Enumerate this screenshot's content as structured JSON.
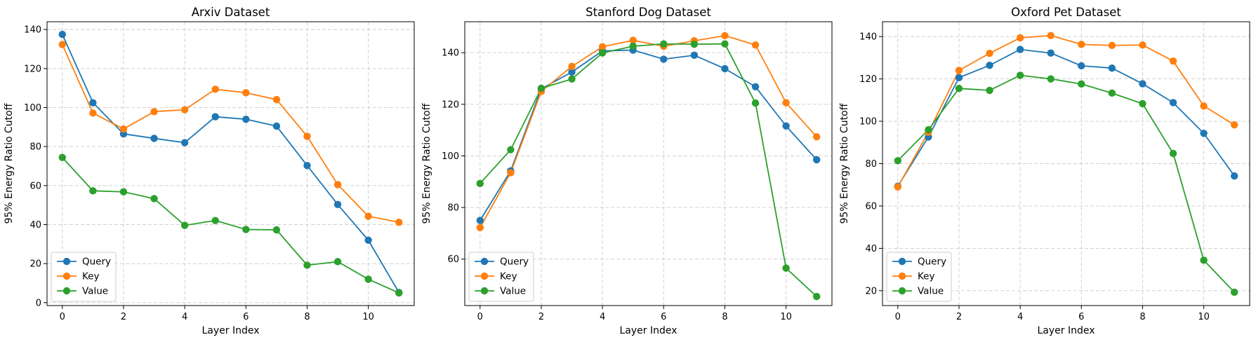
{
  "colors": {
    "query": "#1f77b4",
    "key": "#ff7f0e",
    "value": "#2ca02c",
    "grid": "#cccccc"
  },
  "chart_data": [
    {
      "type": "line",
      "title": "Arxiv Dataset",
      "xlabel": "Layer Index",
      "ylabel": "95% Energy Ratio Cutoff",
      "x": [
        0,
        1,
        2,
        3,
        4,
        5,
        6,
        7,
        8,
        9,
        10,
        11
      ],
      "xlim": [
        -0.5,
        11.5
      ],
      "ylim": [
        -1.5,
        144
      ],
      "xticks": [
        0,
        2,
        4,
        6,
        8,
        10
      ],
      "yticks": [
        0,
        20,
        40,
        60,
        80,
        100,
        120,
        140
      ],
      "grid": true,
      "legend": "lower-left",
      "series": [
        {
          "name": "Query",
          "values": [
            137.5,
            102.5,
            86.5,
            84.2,
            82,
            95.3,
            94,
            90.5,
            70.3,
            50.3,
            32,
            5.2
          ]
        },
        {
          "name": "Key",
          "values": [
            132.3,
            97.2,
            89,
            97.9,
            98.9,
            109.4,
            107.6,
            104.1,
            85.3,
            60.5,
            44.3,
            41.2
          ]
        },
        {
          "name": "Value",
          "values": [
            74.4,
            57.3,
            56.8,
            53.3,
            39.6,
            42.1,
            37.5,
            37.3,
            19.2,
            21,
            12,
            5
          ]
        }
      ]
    },
    {
      "type": "line",
      "title": "Stanford Dog Dataset",
      "xlabel": "Layer Index",
      "ylabel": "95% Energy Ratio Cutoff",
      "x": [
        0,
        1,
        2,
        3,
        4,
        5,
        6,
        7,
        8,
        9,
        10,
        11
      ],
      "xlim": [
        -0.5,
        11.5
      ],
      "ylim": [
        42,
        152
      ],
      "xticks": [
        0,
        2,
        4,
        6,
        8,
        10
      ],
      "yticks": [
        60,
        80,
        100,
        120,
        140
      ],
      "grid": true,
      "legend": "lower-left",
      "series": [
        {
          "name": "Query",
          "values": [
            75,
            94.2,
            126,
            132.5,
            140.7,
            141,
            137.5,
            139,
            133.8,
            126.8,
            111.6,
            98.5
          ]
        },
        {
          "name": "Key",
          "values": [
            72.2,
            93.5,
            125,
            134.7,
            142.3,
            144.8,
            142.5,
            144.6,
            146.6,
            143,
            120.6,
            107.4
          ]
        },
        {
          "name": "Value",
          "values": [
            89.3,
            102.4,
            126.2,
            129.8,
            139.9,
            142.5,
            143.4,
            143.3,
            143.4,
            120.5,
            56.5,
            45.5
          ]
        }
      ]
    },
    {
      "type": "line",
      "title": "Oxford Pet Dataset",
      "xlabel": "Layer Index",
      "ylabel": "95% Energy Ratio Cutoff",
      "x": [
        0,
        1,
        2,
        3,
        4,
        5,
        6,
        7,
        8,
        9,
        10,
        11
      ],
      "xlim": [
        -0.5,
        11.5
      ],
      "ylim": [
        13,
        147
      ],
      "xticks": [
        0,
        2,
        4,
        6,
        8,
        10
      ],
      "yticks": [
        20,
        40,
        60,
        80,
        100,
        120,
        140
      ],
      "grid": true,
      "legend": "lower-left",
      "series": [
        {
          "name": "Query",
          "values": [
            69.3,
            92.6,
            120.6,
            126.4,
            133.9,
            132.2,
            126.2,
            125.1,
            117.7,
            108.8,
            94.3,
            74.2
          ]
        },
        {
          "name": "Key",
          "values": [
            69,
            94.8,
            124,
            132.1,
            139.4,
            140.5,
            136.3,
            135.8,
            136,
            128.4,
            107.2,
            98.3
          ]
        },
        {
          "name": "Value",
          "values": [
            81.4,
            96,
            115.5,
            114.6,
            121.7,
            120,
            117.6,
            113.3,
            108.3,
            84.8,
            34.4,
            19.3
          ]
        }
      ]
    }
  ]
}
